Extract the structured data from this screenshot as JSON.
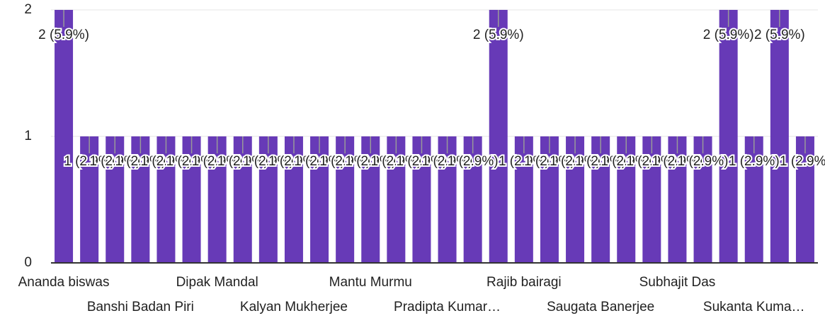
{
  "chart_data": {
    "type": "bar",
    "categories": [
      "Ananda biswas",
      null,
      null,
      "Banshi Badan Piri",
      null,
      null,
      "Dipak Mandal",
      null,
      null,
      "Kalyan Mukherjee",
      null,
      null,
      "Mantu Murmu",
      null,
      null,
      "Pradipta Kumar…",
      null,
      null,
      "Rajib bairagi",
      null,
      null,
      "Saugata Banerjee",
      null,
      null,
      "Subhajit Das",
      null,
      null,
      "Sukanta Kuma…",
      null,
      null
    ],
    "values": [
      2,
      1,
      1,
      1,
      1,
      1,
      1,
      1,
      1,
      1,
      1,
      1,
      1,
      1,
      1,
      1,
      1,
      2,
      1,
      1,
      1,
      1,
      1,
      1,
      1,
      1,
      2,
      1,
      2,
      1
    ],
    "value_labels": [
      "2 (5.9%)",
      "1 (2.9%)",
      "1 (2.9%)",
      "1 (2.9%)",
      "1 (2.9%)",
      "1 (2.9%)",
      "1 (2.9%)",
      "1 (2.9%)",
      "1 (2.9%)",
      "1 (2.9%)",
      "1 (2.9%)",
      "1 (2.9%)",
      "1 (2.9%)",
      "1 (2.9%)",
      "1 (2.9%)",
      "1 (2.9%)",
      "1 (2.9%)",
      "2 (5.9%)",
      "1 (2.9%)",
      "1 (2.9%)",
      "1 (2.9%)",
      "1 (2.9%)",
      "1 (2.9%)",
      "1 (2.9%)",
      "1 (2.9%)",
      "1 (2.9%)",
      "2 (5.9%)",
      "1 (2.9%)",
      "2 (5.9%)",
      "1 (2.9%)"
    ],
    "color": "#673ab7",
    "ylim": [
      0,
      2
    ],
    "yticks": [
      0,
      1,
      2
    ],
    "grid": true
  }
}
